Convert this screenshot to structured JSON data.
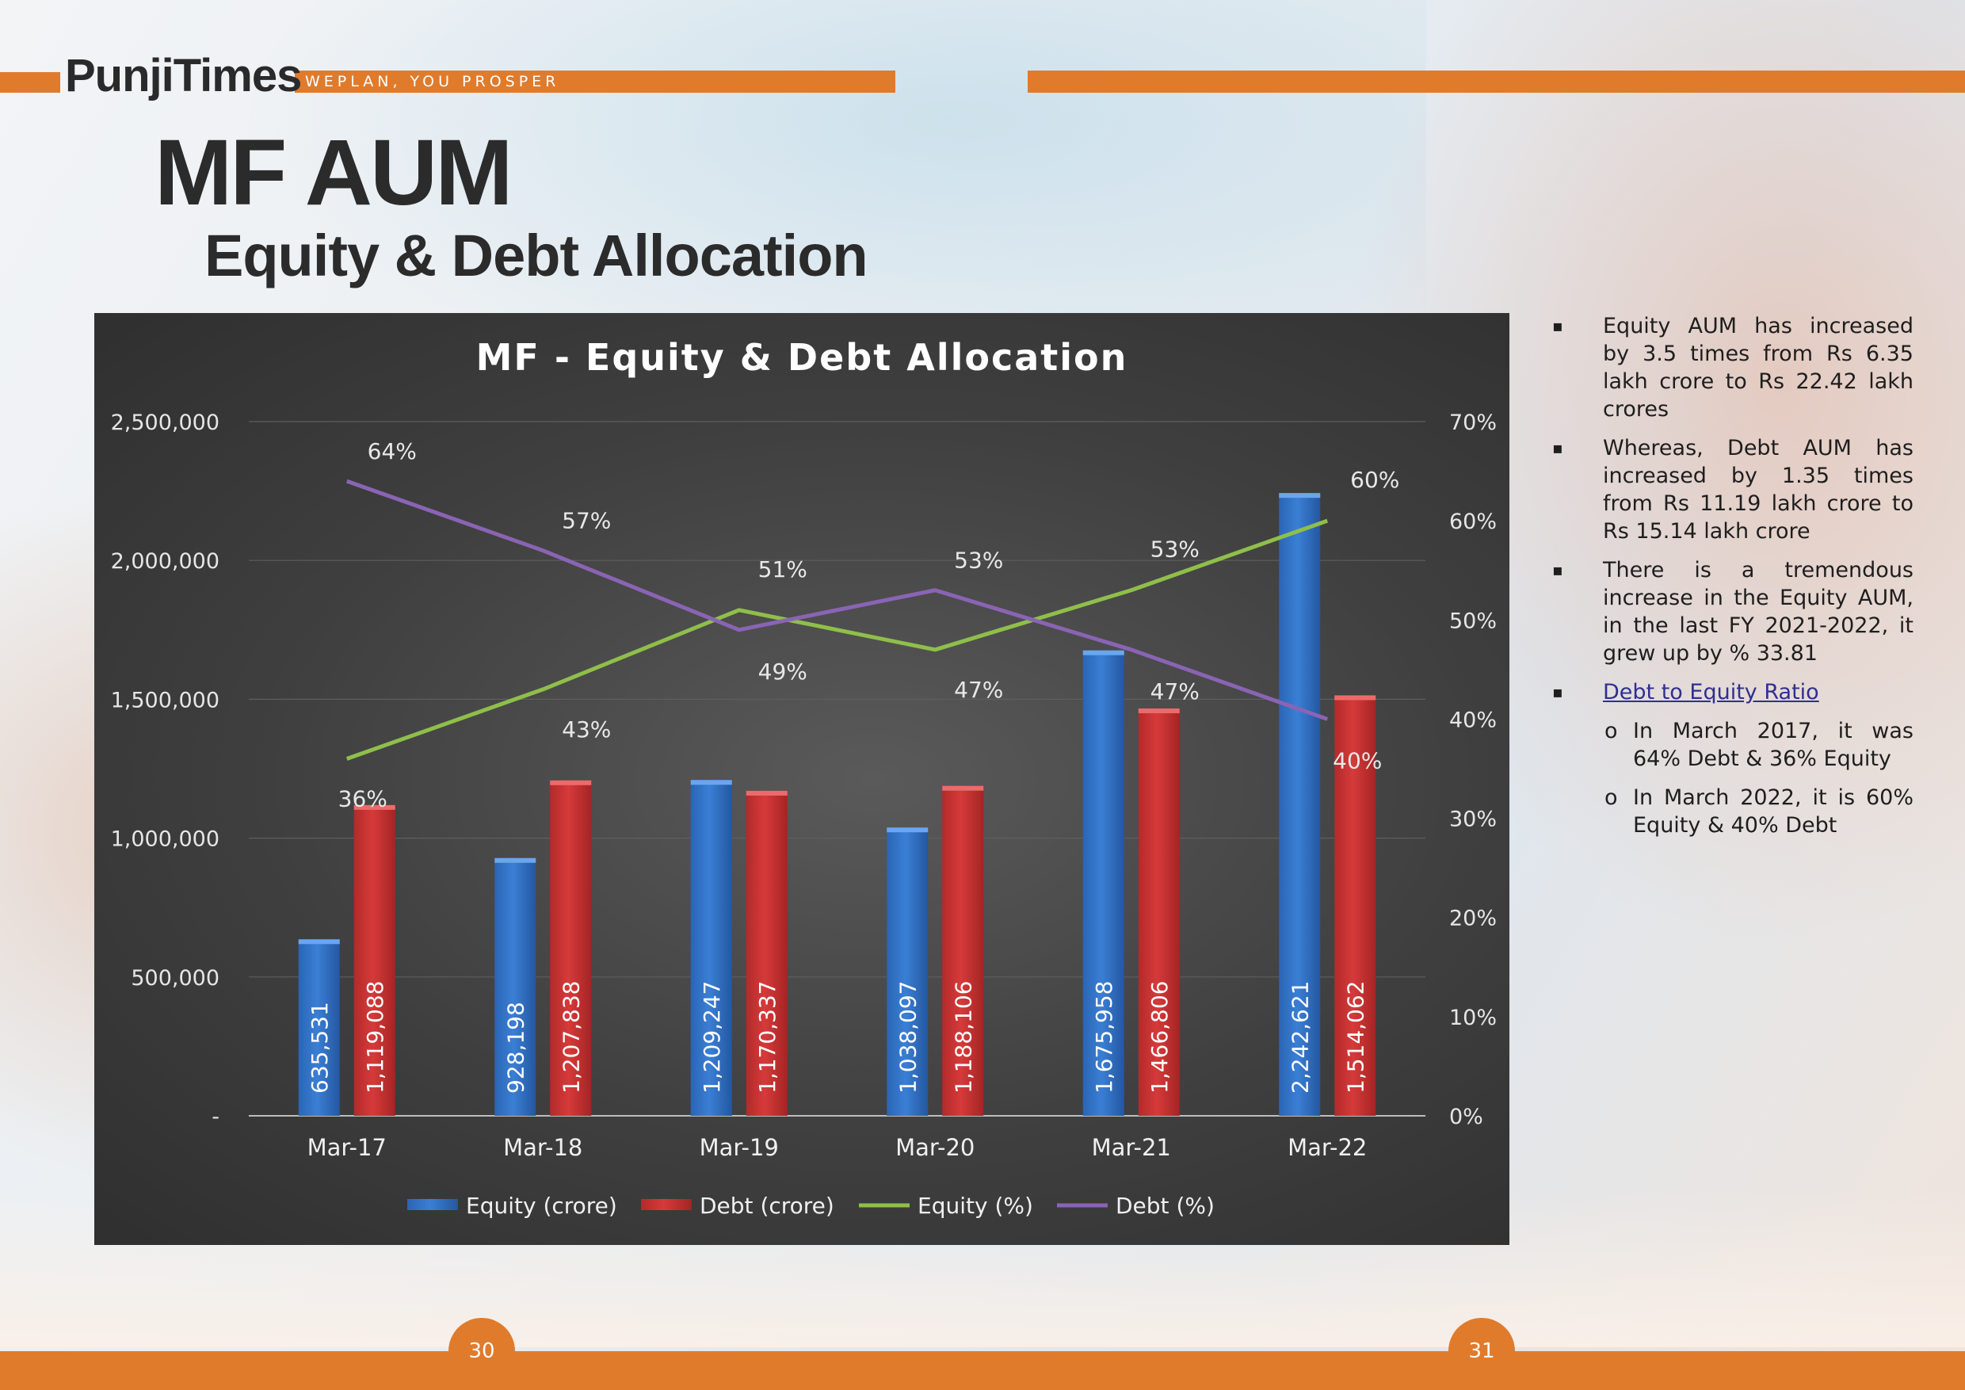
{
  "header": {
    "brand_name": "PunjiTimes",
    "tagline": "WEPLAN, YOU PROSPER",
    "title": "MF AUM",
    "subtitle": "Equity & Debt Allocation"
  },
  "colors": {
    "accent": "#e07b2c",
    "equity_bar": "#3a7fd5",
    "debt_bar": "#d63a3a",
    "equity_line": "#8fbf4a",
    "debt_line": "#8a64b4"
  },
  "chart_data": {
    "type": "bar",
    "title": "MF - Equity & Debt Allocation",
    "categories": [
      "Mar-17",
      "Mar-18",
      "Mar-19",
      "Mar-20",
      "Mar-21",
      "Mar-22"
    ],
    "series": [
      {
        "name": "Equity (crore)",
        "type": "bar",
        "axis": "left",
        "values": [
          635531,
          928198,
          1209247,
          1038097,
          1675958,
          2242621
        ],
        "labels": [
          "635,531",
          "928,198",
          "1,209,247",
          "1,038,097",
          "1,675,958",
          "2,242,621"
        ]
      },
      {
        "name": "Debt (crore)",
        "type": "bar",
        "axis": "left",
        "values": [
          1119088,
          1207838,
          1170337,
          1188106,
          1466806,
          1514062
        ],
        "labels": [
          "1,119,088",
          "1,207,838",
          "1,170,337",
          "1,188,106",
          "1,466,806",
          "1,514,062"
        ]
      },
      {
        "name": "Equity (%)",
        "type": "line",
        "axis": "right",
        "values": [
          36,
          43,
          51,
          47,
          53,
          60
        ],
        "labels": [
          "36%",
          "43%",
          "51%",
          "47%",
          "53%",
          "60%"
        ]
      },
      {
        "name": "Debt (%)",
        "type": "line",
        "axis": "right",
        "values": [
          64,
          57,
          49,
          53,
          47,
          40
        ],
        "labels": [
          "64%",
          "57%",
          "49%",
          "53%",
          "47%",
          "40%"
        ]
      }
    ],
    "y_left": {
      "range": [
        0,
        2500000
      ],
      "ticks": [
        "-",
        "500,000",
        "1,000,000",
        "1,500,000",
        "2,000,000",
        "2,500,000"
      ]
    },
    "y_right": {
      "range": [
        0,
        70
      ],
      "ticks": [
        "0%",
        "10%",
        "20%",
        "30%",
        "40%",
        "50%",
        "60%",
        "70%"
      ]
    },
    "grid": true,
    "legend": "bottom"
  },
  "notes": {
    "items": [
      "Equity AUM has increased by 3.5 times from Rs 6.35 lakh crore to Rs 22.42 lakh crores",
      "Whereas, Debt AUM has increased by 1.35 times from Rs 11.19 lakh crore to Rs 15.14 lakh crore",
      "There is a tremendous increase in the Equity AUM, in the last FY 2021-2022, it grew up by % 33.81"
    ],
    "link_label": "Debt to Equity Ratio",
    "sub_items": [
      "In March 2017, it was 64% Debt & 36% Equity",
      "In March 2022, it is 60% Equity & 40% Debt"
    ],
    "bullet": "▪",
    "sub_bullet": "o"
  },
  "footer": {
    "left_page": "30",
    "right_page": "31"
  }
}
